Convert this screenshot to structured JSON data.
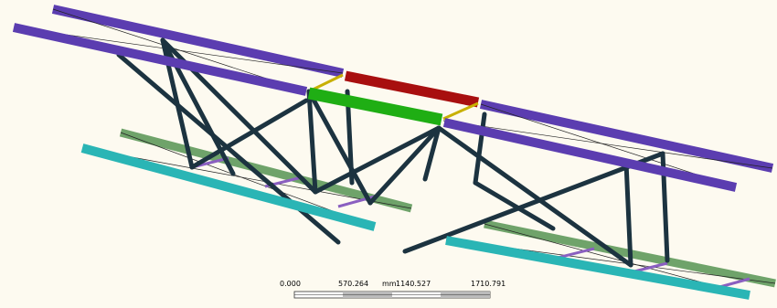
{
  "scale_bar": {
    "labels": [
      "0.000",
      "570.264",
      "1140.527",
      "1710.791"
    ],
    "unit": "mm"
  }
}
